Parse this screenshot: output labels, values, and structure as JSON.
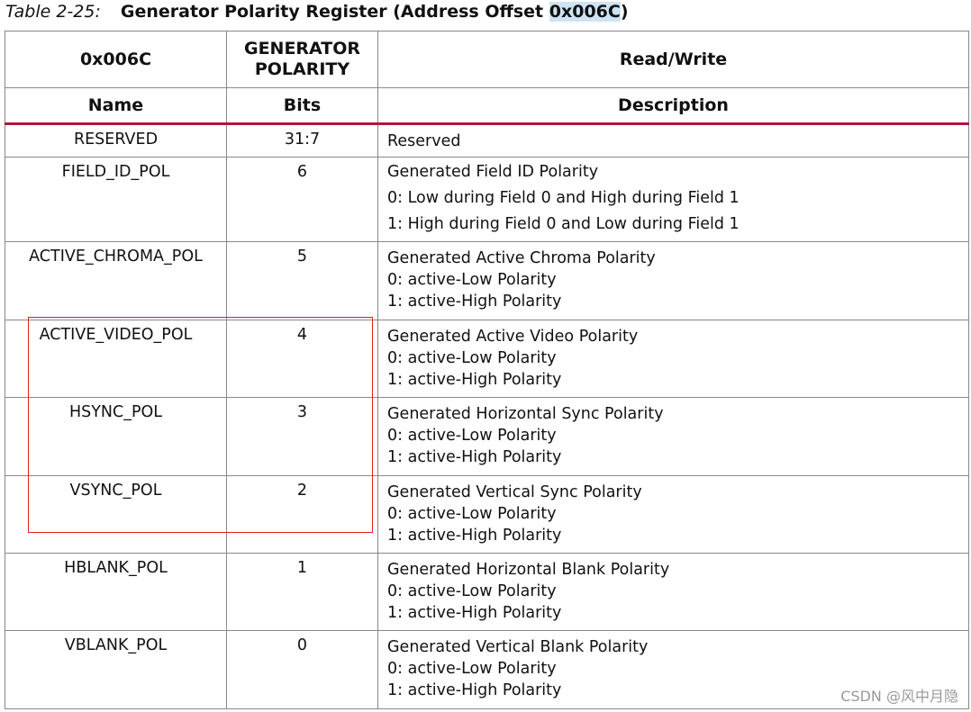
{
  "caption": {
    "label": "Table 2-25:",
    "title": "Generator Polarity Register (Address Offset ",
    "address": "0x006C",
    "close": ")"
  },
  "header": {
    "offset": "0x006C",
    "register_name": "GENERATOR POLARITY",
    "access": "Read/Write",
    "col_name": "Name",
    "col_bits": "Bits",
    "col_desc": "Description"
  },
  "rows": [
    {
      "name": "RESERVED",
      "bits": "31:7",
      "desc": [
        "Reserved"
      ]
    },
    {
      "name": "FIELD_ID_POL",
      "bits": "6",
      "desc": [
        "Generated Field ID Polarity",
        "0: Low during Field 0 and High during Field 1",
        "1: High during Field 0 and Low during Field 1"
      ]
    },
    {
      "name": "ACTIVE_CHROMA_POL",
      "bits": "5",
      "desc": [
        "Generated Active Chroma Polarity",
        "0: active-Low Polarity",
        "1: active-High Polarity"
      ]
    },
    {
      "name": "ACTIVE_VIDEO_POL",
      "bits": "4",
      "desc": [
        "Generated Active Video Polarity",
        "0: active-Low Polarity",
        "1: active-High Polarity"
      ]
    },
    {
      "name": "HSYNC_POL",
      "bits": "3",
      "desc": [
        "Generated Horizontal Sync Polarity",
        "0: active-Low Polarity",
        "1: active-High Polarity"
      ]
    },
    {
      "name": "VSYNC_POL",
      "bits": "2",
      "desc": [
        "Generated Vertical Sync Polarity",
        "0: active-Low Polarity",
        "1: active-High Polarity"
      ]
    },
    {
      "name": "HBLANK_POL",
      "bits": "1",
      "desc": [
        "Generated Horizontal Blank Polarity",
        "0: active-Low Polarity",
        "1: active-High Polarity"
      ]
    },
    {
      "name": "VBLANK_POL",
      "bits": "0",
      "desc": [
        "Generated Vertical Blank Polarity",
        "0: active-Low Polarity",
        "1: active-High Polarity"
      ]
    }
  ],
  "watermark": "CSDN @风中月隐",
  "colors": {
    "header_rule": "#b0163c",
    "annotation_box": "#e02020",
    "selection": "#cfe3f3"
  }
}
